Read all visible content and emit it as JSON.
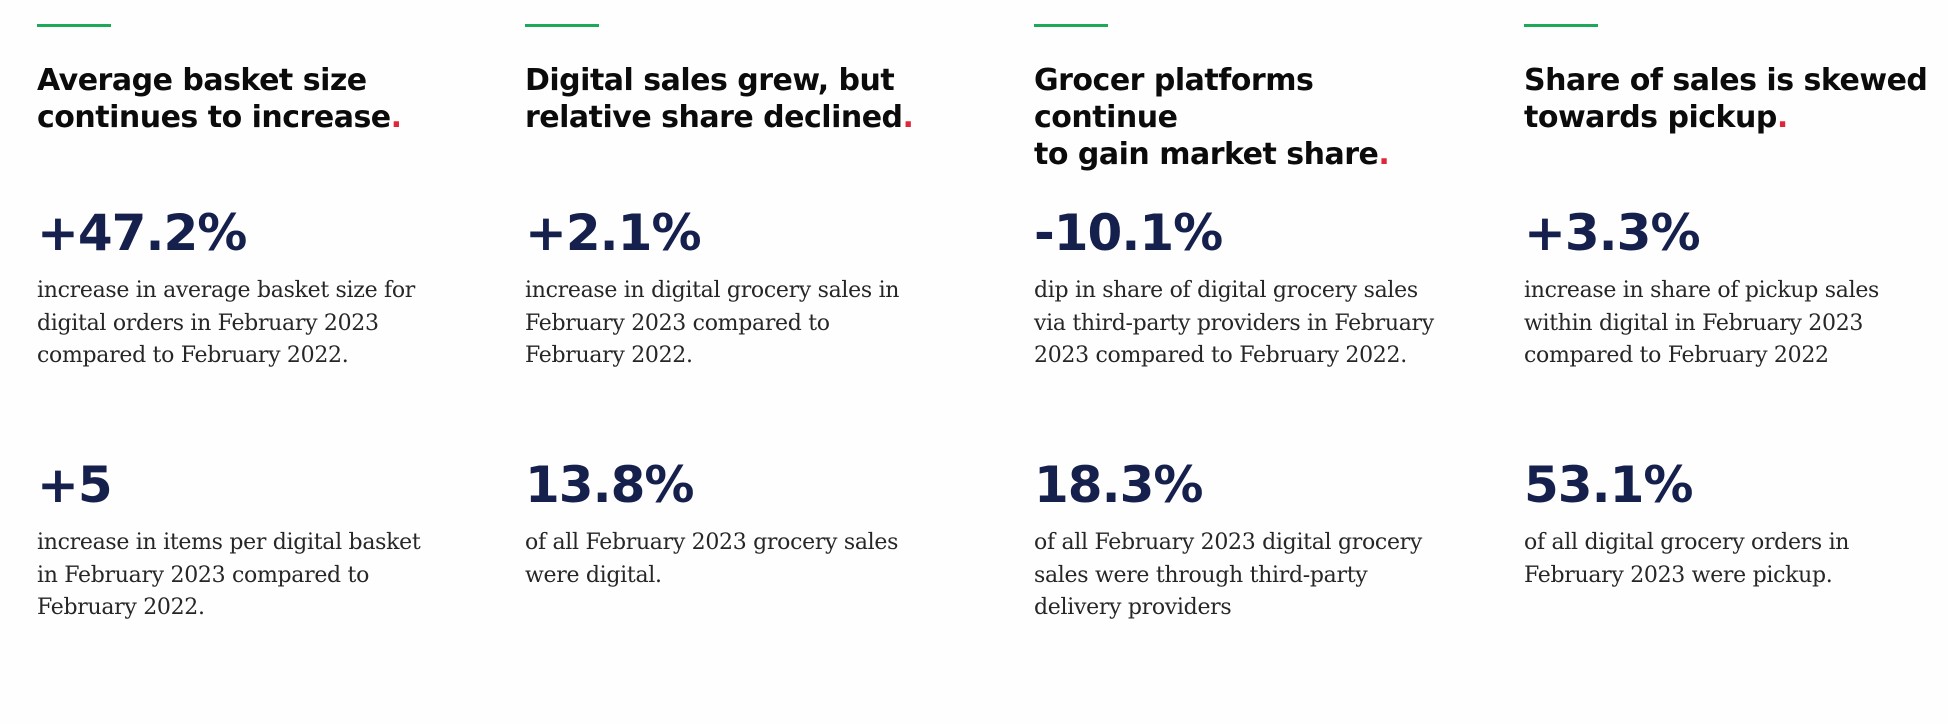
{
  "colors": {
    "accent_rule": "#1ea85a",
    "heading_dot": "#e0263a",
    "stat_number": "#16204d"
  },
  "columns": [
    {
      "heading": "Average basket size\ncontinues to increase",
      "heading_dot": ".",
      "stats": [
        {
          "value": "+47.2%",
          "description": "increase in average basket size for\ndigital orders in February 2023\ncompared to February 2022."
        },
        {
          "value": "+5",
          "description": "increase in items per digital basket\nin February 2023 compared to\nFebruary 2022."
        }
      ]
    },
    {
      "heading": "Digital sales grew, but\nrelative share declined",
      "heading_dot": ".",
      "stats": [
        {
          "value": "+2.1%",
          "description": "increase in digital grocery sales in\nFebruary 2023 compared to\nFebruary 2022."
        },
        {
          "value": "13.8%",
          "description": "of all February 2023 grocery sales\nwere digital."
        }
      ]
    },
    {
      "heading": "Grocer platforms continue\nto gain market share",
      "heading_dot": ".",
      "stats": [
        {
          "value": "-10.1%",
          "description": "dip in share of digital grocery sales\nvia third-party providers in February\n2023 compared to February 2022."
        },
        {
          "value": "18.3%",
          "description": "of all February 2023 digital grocery\nsales were through third-party\ndelivery providers"
        }
      ]
    },
    {
      "heading": "Share of sales is skewed\ntowards pickup",
      "heading_dot": ".",
      "stats": [
        {
          "value": "+3.3%",
          "description": "increase in share of pickup sales\nwithin digital in February 2023\ncompared to February 2022"
        },
        {
          "value": "53.1%",
          "description": "of all digital grocery orders in\nFebruary 2023 were pickup."
        }
      ]
    }
  ]
}
